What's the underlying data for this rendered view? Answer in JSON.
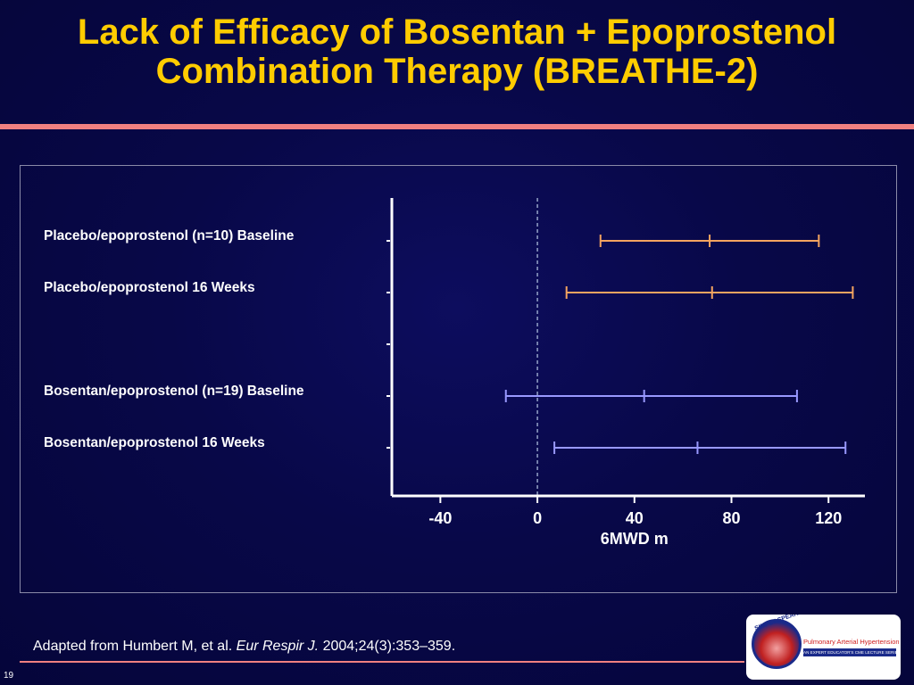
{
  "slide": {
    "title_line1": "Lack of Efficacy of Bosentan + Epoprostenol",
    "title_line2": "Combination Therapy (BREATHE-2)",
    "slide_number": "19"
  },
  "citation": {
    "prefix": "Adapted from Humbert M, et al. ",
    "journal": "Eur Respir J.",
    "suffix": " 2004;24(3):353–359."
  },
  "logo": {
    "arc_text": "SIMPLY SPEAKING",
    "main_text": "Pulmonary Arterial Hypertension",
    "sub_text": "AN EXPERT EDUCATOR'S CME LECTURE SERIES"
  },
  "colors": {
    "title": "#ffcc00",
    "placebo": "#f4a460",
    "bosentan": "#9999ff",
    "reference_line": "#a8b8d8",
    "rule": "#f08080"
  },
  "chart_data": {
    "type": "forest",
    "xlabel": "6MWD m",
    "ylabel": "",
    "xlim": [
      -60,
      135
    ],
    "xticks": [
      -40,
      0,
      40,
      80,
      120
    ],
    "reference_line_x": 0,
    "rows": [
      {
        "label": "Placebo/epoprostenol (n=10) Baseline",
        "group": "placebo",
        "low": 26,
        "mid": 71,
        "high": 116
      },
      {
        "label": "Placebo/epoprostenol 16 Weeks",
        "group": "placebo",
        "low": 12,
        "mid": 72,
        "high": 130
      },
      {
        "label": "",
        "group": "",
        "low": null,
        "mid": null,
        "high": null
      },
      {
        "label": "Bosentan/epoprostenol (n=19) Baseline",
        "group": "bosentan",
        "low": -13,
        "mid": 44,
        "high": 107
      },
      {
        "label": "Bosentan/epoprostenol 16 Weeks",
        "group": "bosentan",
        "low": 7,
        "mid": 66,
        "high": 127
      }
    ]
  }
}
